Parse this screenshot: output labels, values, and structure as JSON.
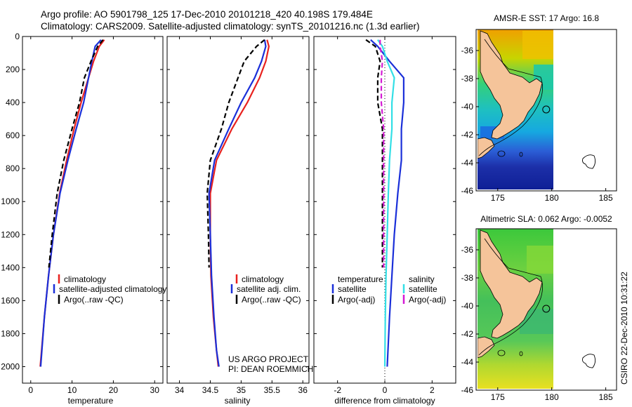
{
  "header": {
    "line1": "Argo profile: AO 5901798_125 17-Dec-2010 20101218_420 40.198S 179.484E",
    "line2": "Climatology: CARS2009. Satellite-adjusted climatology: synTS_20101216.nc (1.3d earlier)"
  },
  "side_label": "CSIRO 22-Dec-2010 10:31:22",
  "colors": {
    "red": "#e8211e",
    "blue": "#1a2fd9",
    "black": "#000000",
    "cyan": "#33dfe6",
    "magenta": "#d41ad4",
    "land": "#f5c49a",
    "ocean_deep": "#2b3fc7"
  },
  "chart_data": [
    {
      "type": "line",
      "id": "temperature",
      "xlabel": "temperature",
      "xlim": [
        -2,
        32
      ],
      "ylim": [
        0,
        2100
      ],
      "xticks": [
        "0",
        "10",
        "20",
        "30"
      ],
      "xtick_values": [
        0,
        10,
        20,
        30
      ],
      "yticks": [
        "0",
        "200",
        "400",
        "600",
        "800",
        "1000",
        "1200",
        "1400",
        "1600",
        "1800",
        "2000"
      ],
      "ytick_values": [
        0,
        200,
        400,
        600,
        800,
        1000,
        1200,
        1400,
        1600,
        1800,
        2000
      ],
      "y_axis": "depth (inverted)",
      "series": [
        {
          "name": "climatology",
          "color": "red",
          "x": [
            17.8,
            16.6,
            15.2,
            14.0,
            12.2,
            10.5,
            8.7,
            7.0,
            5.5,
            4.3,
            3.3,
            2.3
          ],
          "y": [
            20,
            60,
            150,
            250,
            400,
            560,
            750,
            950,
            1200,
            1450,
            1700,
            2000
          ]
        },
        {
          "name": "satellite-adjusted climatology",
          "color": "blue",
          "x": [
            17.0,
            15.6,
            14.8,
            14.0,
            12.8,
            11.0,
            9.0,
            7.1,
            5.5,
            4.3,
            3.3,
            2.4
          ],
          "y": [
            20,
            60,
            150,
            250,
            400,
            560,
            750,
            950,
            1200,
            1450,
            1700,
            2000
          ]
        },
        {
          "name": "Argo(..raw -QC)",
          "color": "black",
          "dashed": true,
          "x": [
            17.5,
            16.2,
            14.6,
            13.0,
            11.8,
            10.0,
            8.0,
            6.4,
            5.2,
            4.4
          ],
          "y": [
            20,
            60,
            150,
            250,
            400,
            560,
            750,
            950,
            1200,
            1400
          ]
        }
      ],
      "legend": [
        "climatology",
        "satellite-adjusted climatology",
        "Argo(..raw -QC)"
      ]
    },
    {
      "type": "line",
      "id": "salinity",
      "xlabel": "salinity",
      "xlim": [
        33.8,
        36.1
      ],
      "ylim": [
        0,
        2100
      ],
      "xticks": [
        "34",
        "34.5",
        "35",
        "35.5",
        "36"
      ],
      "xtick_values": [
        34,
        34.5,
        35,
        35.5,
        36
      ],
      "series": [
        {
          "name": "climatology",
          "color": "red",
          "x": [
            35.42,
            35.45,
            35.4,
            35.3,
            35.1,
            34.85,
            34.6,
            34.5,
            34.5,
            34.51,
            34.55,
            34.6,
            34.63
          ],
          "y": [
            20,
            60,
            150,
            250,
            400,
            560,
            750,
            950,
            1200,
            1450,
            1700,
            1900,
            2000
          ]
        },
        {
          "name": "satellite adj. clim.",
          "color": "blue",
          "x": [
            35.38,
            35.4,
            35.33,
            35.22,
            35.0,
            34.8,
            34.57,
            34.48,
            34.5,
            34.52,
            34.56,
            34.6,
            34.64
          ],
          "y": [
            20,
            60,
            150,
            250,
            400,
            560,
            750,
            950,
            1200,
            1450,
            1700,
            1900,
            2000
          ]
        },
        {
          "name": "Argo(..raw -QC)",
          "color": "black",
          "dashed": true,
          "x": [
            35.38,
            35.25,
            35.05,
            34.95,
            34.8,
            34.68,
            34.5,
            34.45,
            34.47,
            34.48
          ],
          "y": [
            20,
            60,
            150,
            250,
            400,
            560,
            750,
            950,
            1200,
            1400
          ]
        }
      ],
      "legend": [
        "climatology",
        "satellite adj. clim.",
        "Argo(..raw -QC)"
      ],
      "annotation": [
        "US ARGO PROJECT",
        "PI: DEAN ROEMMICH"
      ]
    },
    {
      "type": "line",
      "id": "difference",
      "xlabel": "difference from climatology",
      "xlim": [
        -3,
        3
      ],
      "ylim": [
        0,
        2100
      ],
      "xticks": [
        "-2",
        "0",
        "2"
      ],
      "xtick_values": [
        -2,
        0,
        2
      ],
      "zero_line": true,
      "series": [
        {
          "name": "temperature satellite",
          "color": "blue",
          "x": [
            -0.6,
            -0.3,
            0.2,
            0.8,
            0.8,
            0.7,
            0.7,
            0.55,
            0.4,
            0.3,
            0.2,
            0.1
          ],
          "y": [
            20,
            60,
            150,
            250,
            400,
            560,
            750,
            950,
            1200,
            1450,
            1700,
            2000
          ]
        },
        {
          "name": "temperature Argo(-adj)",
          "color": "black",
          "dashed": true,
          "x": [
            -0.8,
            -0.4,
            -0.2,
            -0.3,
            -0.3,
            -0.1,
            -0.1,
            -0.1,
            -0.1,
            -0.1
          ],
          "y": [
            20,
            60,
            150,
            250,
            400,
            560,
            750,
            950,
            1200,
            1400
          ]
        },
        {
          "name": "salinity satellite",
          "color": "cyan",
          "x": [
            -0.3,
            -0.1,
            0.1,
            0.4,
            0.3,
            0.3,
            0.2,
            0.15,
            0.1,
            0.05,
            0.02,
            0.0
          ],
          "y": [
            20,
            60,
            150,
            250,
            400,
            560,
            750,
            950,
            1200,
            1450,
            1700,
            2000
          ]
        },
        {
          "name": "salinity Argo(-adj)",
          "color": "magenta",
          "dashed": true,
          "x": [
            -0.2,
            -0.2,
            -0.1,
            -0.15,
            -0.15,
            -0.05,
            -0.05,
            -0.05,
            -0.05,
            -0.05
          ],
          "y": [
            20,
            60,
            150,
            250,
            400,
            560,
            750,
            950,
            1200,
            1400
          ]
        }
      ],
      "legend_headers": [
        "temperature",
        "salinity"
      ],
      "legend": [
        "satellite",
        "Argo(-adj)",
        "satellite",
        "Argo(-adj)"
      ]
    },
    {
      "type": "heatmap",
      "id": "sst_map",
      "title": "AMSR-E SST: 17 Argo: 16.8",
      "xlim": [
        173,
        186
      ],
      "ylim": [
        -46,
        -34.5
      ],
      "xticks": [
        "175",
        "180",
        "185"
      ],
      "xtick_values": [
        175,
        180,
        185
      ],
      "yticks": [
        "-36",
        "-38",
        "-40",
        "-42",
        "-44",
        "-46"
      ],
      "ytick_values": [
        -36,
        -38,
        -40,
        -42,
        -44,
        -46
      ],
      "data_extent_lon": [
        173,
        180
      ],
      "float_position": [
        179.484,
        -40.198
      ]
    },
    {
      "type": "heatmap",
      "id": "sla_map",
      "title": "Altimetric SLA: 0.062 Argo: -0.0052",
      "xlim": [
        173,
        186
      ],
      "ylim": [
        -46,
        -34.5
      ],
      "xticks": [
        "175",
        "180",
        "185"
      ],
      "xtick_values": [
        175,
        180,
        185
      ],
      "yticks": [
        "-36",
        "-38",
        "-40",
        "-42",
        "-44",
        "-46"
      ],
      "ytick_values": [
        -36,
        -38,
        -40,
        -42,
        -44,
        -46
      ],
      "data_extent_lon": [
        173,
        180
      ],
      "float_position": [
        179.484,
        -40.198
      ]
    }
  ]
}
